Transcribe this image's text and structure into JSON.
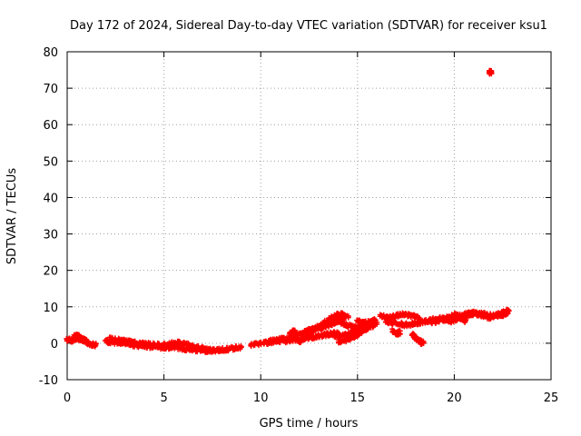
{
  "chart_data": {
    "type": "scatter",
    "title": "Day 172 of 2024, Sidereal Day-to-day VTEC variation (SDTVAR) for receiver ksu1",
    "xlabel": "GPS time / hours",
    "ylabel": "SDTVAR / TECUs",
    "xlim": [
      0,
      25
    ],
    "ylim": [
      -10,
      80
    ],
    "xticks": [
      0,
      5,
      10,
      15,
      20,
      25
    ],
    "yticks": [
      -10,
      0,
      10,
      20,
      30,
      40,
      50,
      60,
      70,
      80
    ],
    "grid": true,
    "marker": "plus",
    "color": "#ff0000",
    "series": [
      {
        "name": "SDTVAR",
        "tracks": [
          {
            "x": [
              0.0,
              0.3,
              0.6,
              0.9,
              1.2,
              1.5
            ],
            "y": [
              1.0,
              0.8,
              1.5,
              0.6,
              -0.2,
              -0.5
            ]
          },
          {
            "x": [
              0.4,
              0.6,
              0.8,
              1.0
            ],
            "y": [
              2.2,
              1.8,
              1.2,
              0.5
            ]
          },
          {
            "x": [
              2.0,
              2.5,
              3.0,
              3.5,
              4.0,
              4.5,
              5.0,
              5.5,
              6.0,
              6.5,
              7.0,
              7.5,
              8.0,
              8.5,
              9.0
            ],
            "y": [
              0.5,
              0.2,
              0.0,
              -0.5,
              -0.8,
              -1.0,
              -1.2,
              -1.0,
              -1.5,
              -1.8,
              -2.0,
              -2.0,
              -1.8,
              -1.5,
              -1.0
            ]
          },
          {
            "x": [
              2.2,
              2.8,
              3.4,
              4.0,
              4.6,
              5.2,
              5.8,
              6.4,
              7.0,
              7.6
            ],
            "y": [
              1.2,
              0.8,
              0.2,
              -0.2,
              -0.5,
              -0.3,
              0.2,
              -0.8,
              -1.5,
              -2.0
            ]
          },
          {
            "x": [
              9.5,
              10.0,
              10.5,
              11.0,
              11.5,
              12.0,
              12.5,
              13.0,
              13.5,
              14.0
            ],
            "y": [
              -0.5,
              0.0,
              0.3,
              0.5,
              0.8,
              1.0,
              1.5,
              2.0,
              2.5,
              3.0
            ]
          },
          {
            "x": [
              10.5,
              11.0,
              11.5,
              12.0,
              12.5,
              13.0,
              13.5,
              14.0,
              14.5
            ],
            "y": [
              0.5,
              1.0,
              1.5,
              2.5,
              3.5,
              4.5,
              5.5,
              6.5,
              7.5
            ]
          },
          {
            "x": [
              11.5,
              11.8
            ],
            "y": [
              2.5,
              3.5
            ]
          },
          {
            "x": [
              12.0,
              12.5,
              13.0,
              13.5,
              14.0,
              14.3
            ],
            "y": [
              0.5,
              2.5,
              4.5,
              6.5,
              7.8,
              8.0
            ]
          },
          {
            "x": [
              13.0,
              13.5,
              14.0,
              14.5,
              15.0,
              15.5
            ],
            "y": [
              4.0,
              5.0,
              6.0,
              5.0,
              4.0,
              5.0
            ]
          },
          {
            "x": [
              13.5,
              14.0,
              14.5,
              15.0,
              15.5
            ],
            "y": [
              2.5,
              2.0,
              2.5,
              3.0,
              4.0
            ]
          },
          {
            "x": [
              14.0,
              14.5,
              15.0,
              15.5,
              16.0
            ],
            "y": [
              0.5,
              1.0,
              2.5,
              4.0,
              5.5
            ]
          },
          {
            "x": [
              15.0,
              15.3,
              15.6,
              15.9
            ],
            "y": [
              6.0,
              5.5,
              5.8,
              6.2
            ]
          },
          {
            "x": [
              16.2,
              16.6,
              17.0,
              17.4,
              17.8,
              18.2
            ],
            "y": [
              7.5,
              7.0,
              7.5,
              8.0,
              7.5,
              7.0
            ]
          },
          {
            "x": [
              16.5,
              17.0,
              17.5,
              18.0,
              18.5,
              19.0
            ],
            "y": [
              6.0,
              5.5,
              5.0,
              5.5,
              6.0,
              6.5
            ]
          },
          {
            "x": [
              16.8,
              17.0,
              17.2
            ],
            "y": [
              3.5,
              2.5,
              3.0
            ]
          },
          {
            "x": [
              17.8,
              18.0,
              18.2,
              18.4
            ],
            "y": [
              2.5,
              1.5,
              0.5,
              0.0
            ]
          },
          {
            "x": [
              19.0,
              19.5,
              20.0,
              20.5,
              21.0,
              21.5,
              22.0,
              22.5,
              22.8
            ],
            "y": [
              6.5,
              7.0,
              7.5,
              7.5,
              8.0,
              8.0,
              7.5,
              7.8,
              8.5
            ]
          },
          {
            "x": [
              18.8,
              19.3,
              19.8,
              20.3,
              20.8,
              21.3,
              21.8,
              22.3,
              22.8
            ],
            "y": [
              5.5,
              6.5,
              6.0,
              7.0,
              8.5,
              8.0,
              7.0,
              8.0,
              9.0
            ]
          },
          {
            "x": [
              20.0,
              20.3,
              20.6
            ],
            "y": [
              8.0,
              7.0,
              6.0
            ]
          },
          {
            "x": [
              21.8,
              21.9
            ],
            "y": [
              74.5,
              74.3
            ]
          }
        ]
      }
    ]
  }
}
